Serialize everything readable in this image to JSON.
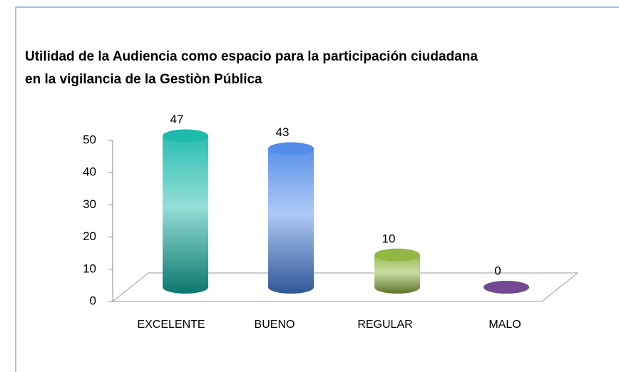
{
  "chart_data": {
    "type": "bar3d",
    "title": [
      "Utilidad de la Audiencia como espacio para la participación ciudadana",
      "en la vigilancia de la Gestiòn Pública"
    ],
    "categories": [
      "EXCELENTE",
      "BUENO",
      "REGULAR",
      "MALO"
    ],
    "values": [
      47,
      43,
      10,
      0
    ],
    "colors": [
      "#12b7a8",
      "#4a86e8",
      "#8db33a",
      "#6b3f8c"
    ],
    "ylim": [
      0,
      50
    ],
    "yticks": [
      0,
      10,
      20,
      30,
      40,
      50
    ]
  }
}
